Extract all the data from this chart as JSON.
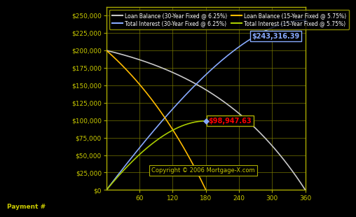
{
  "background_color": "#000000",
  "plot_bg_color": "#000000",
  "grid_color": "#808000",
  "border_color": "#aaaa00",
  "title": "",
  "xlabel": "Payment #",
  "xlim": [
    0,
    360
  ],
  "ylim": [
    0,
    262500
  ],
  "xtick_label_start": 60,
  "xticks": [
    60,
    120,
    180,
    240,
    300,
    360
  ],
  "yticks": [
    0,
    25000,
    50000,
    75000,
    100000,
    125000,
    150000,
    175000,
    200000,
    225000,
    250000
  ],
  "loan_amount": 200000,
  "rate_30": 0.0625,
  "rate_15": 0.0575,
  "n_30": 360,
  "n_15": 180,
  "line_colors": {
    "balance_30": "#c8c8c8",
    "interest_30": "#88aaff",
    "balance_15": "#ffbb00",
    "interest_15": "#aacc00"
  },
  "legend_labels": [
    "Loan Balance (30-Year Fixed @ 6.25%)",
    "Total Interest (30-Year Fixed @ 6.25%)",
    "Loan Balance (15-Year Fixed @ 5.75%)",
    "Total Interest (15-Year Fixed @ 5.75%)"
  ],
  "annotation_30_value": "$243,316.39",
  "annotation_30_color": "#88aaff",
  "annotation_15_value": "$98,947.63",
  "annotation_15_color": "#ff0000",
  "annotation_15_payment": 180,
  "diamond_color": "#88aaff",
  "copyright_text": "Copyright © 2006 Mortgage-X.com",
  "tick_color": "#aaaa00",
  "label_color": "#cccc00",
  "legend_text_color": "#ffffff"
}
